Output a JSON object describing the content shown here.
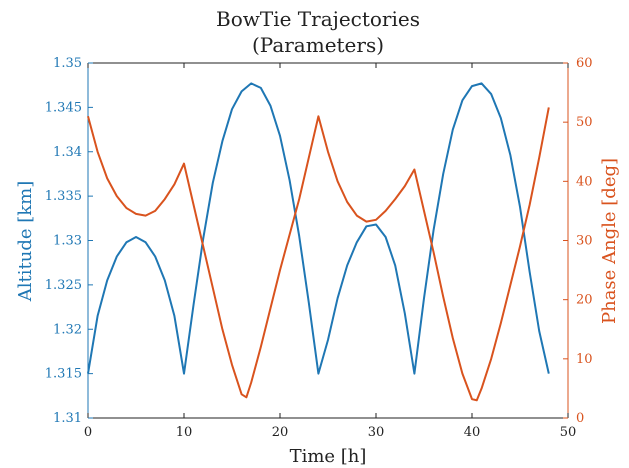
{
  "chart_data": {
    "type": "line",
    "title": "BowTie Trajectories",
    "subtitle": "(Parameters)",
    "xlabel": "Time [h]",
    "ylabel_left": "Altitude [km]",
    "ylabel_right": "Phase Angle [deg]",
    "xlim": [
      0,
      50
    ],
    "ylim_left": [
      1.31,
      1.35
    ],
    "ylim_right": [
      0,
      60
    ],
    "x_ticks": [
      "0",
      "10",
      "20",
      "30",
      "40",
      "50"
    ],
    "y_left_ticks": [
      "1.31",
      "1.315",
      "1.32",
      "1.325",
      "1.33",
      "1.335",
      "1.34",
      "1.345",
      "1.35"
    ],
    "y_right_ticks": [
      "0",
      "10",
      "20",
      "30",
      "40",
      "50",
      "60"
    ],
    "grid": false,
    "colors": {
      "altitude": "#1f77b4",
      "phase": "#d9531e",
      "axis_black": "#222222"
    },
    "series": [
      {
        "axis": "left",
        "points": [
          [
            0,
            1.315
          ],
          [
            1,
            1.3215
          ],
          [
            2,
            1.3255
          ],
          [
            3,
            1.3282
          ],
          [
            4,
            1.3298
          ],
          [
            5,
            1.3304
          ],
          [
            6,
            1.3298
          ],
          [
            7,
            1.3282
          ],
          [
            8,
            1.3255
          ],
          [
            9,
            1.3215
          ],
          [
            10,
            1.315
          ],
          [
            11,
            1.3228
          ],
          [
            12,
            1.3302
          ],
          [
            13,
            1.3365
          ],
          [
            14,
            1.3412
          ],
          [
            15,
            1.3448
          ],
          [
            16,
            1.3468
          ],
          [
            17,
            1.3477
          ],
          [
            18,
            1.3472
          ],
          [
            19,
            1.3452
          ],
          [
            20,
            1.3418
          ],
          [
            21,
            1.3368
          ],
          [
            22,
            1.3305
          ],
          [
            23,
            1.323
          ],
          [
            24,
            1.315
          ],
          [
            25,
            1.3188
          ],
          [
            26,
            1.3235
          ],
          [
            27,
            1.3272
          ],
          [
            28,
            1.3298
          ],
          [
            29,
            1.3316
          ],
          [
            30,
            1.3318
          ],
          [
            31,
            1.3304
          ],
          [
            32,
            1.3272
          ],
          [
            33,
            1.3218
          ],
          [
            34,
            1.315
          ],
          [
            35,
            1.3235
          ],
          [
            36,
            1.3312
          ],
          [
            37,
            1.3375
          ],
          [
            38,
            1.3425
          ],
          [
            39,
            1.3458
          ],
          [
            40,
            1.3474
          ],
          [
            41,
            1.3477
          ],
          [
            42,
            1.3465
          ],
          [
            43,
            1.3438
          ],
          [
            44,
            1.3396
          ],
          [
            45,
            1.3338
          ],
          [
            46,
            1.3265
          ],
          [
            47,
            1.3198
          ],
          [
            48,
            1.315
          ]
        ]
      },
      {
        "axis": "right",
        "points": [
          [
            0,
            51
          ],
          [
            1,
            45
          ],
          [
            2,
            40.5
          ],
          [
            3,
            37.5
          ],
          [
            4,
            35.5
          ],
          [
            5,
            34.5
          ],
          [
            6,
            34.2
          ],
          [
            7,
            35
          ],
          [
            8,
            37
          ],
          [
            9,
            39.5
          ],
          [
            10,
            43
          ],
          [
            11,
            36
          ],
          [
            12,
            29
          ],
          [
            13,
            22
          ],
          [
            14,
            15
          ],
          [
            15,
            9
          ],
          [
            16,
            4
          ],
          [
            16.5,
            3.5
          ],
          [
            17,
            6
          ],
          [
            18,
            12
          ],
          [
            19,
            18.5
          ],
          [
            20,
            25
          ],
          [
            21,
            31
          ],
          [
            22,
            37
          ],
          [
            23,
            44
          ],
          [
            24,
            51
          ],
          [
            25,
            45
          ],
          [
            26,
            40
          ],
          [
            27,
            36.5
          ],
          [
            28,
            34.2
          ],
          [
            29,
            33.2
          ],
          [
            30,
            33.5
          ],
          [
            31,
            35
          ],
          [
            32,
            37
          ],
          [
            33,
            39.2
          ],
          [
            34,
            42
          ],
          [
            35,
            35
          ],
          [
            36,
            28
          ],
          [
            37,
            20.5
          ],
          [
            38,
            13.5
          ],
          [
            39,
            7.5
          ],
          [
            40,
            3.2
          ],
          [
            40.5,
            3
          ],
          [
            41,
            5
          ],
          [
            42,
            10
          ],
          [
            43,
            16
          ],
          [
            44,
            22.5
          ],
          [
            45,
            29
          ],
          [
            46,
            36
          ],
          [
            47,
            44
          ],
          [
            48,
            52.5
          ]
        ]
      }
    ]
  }
}
